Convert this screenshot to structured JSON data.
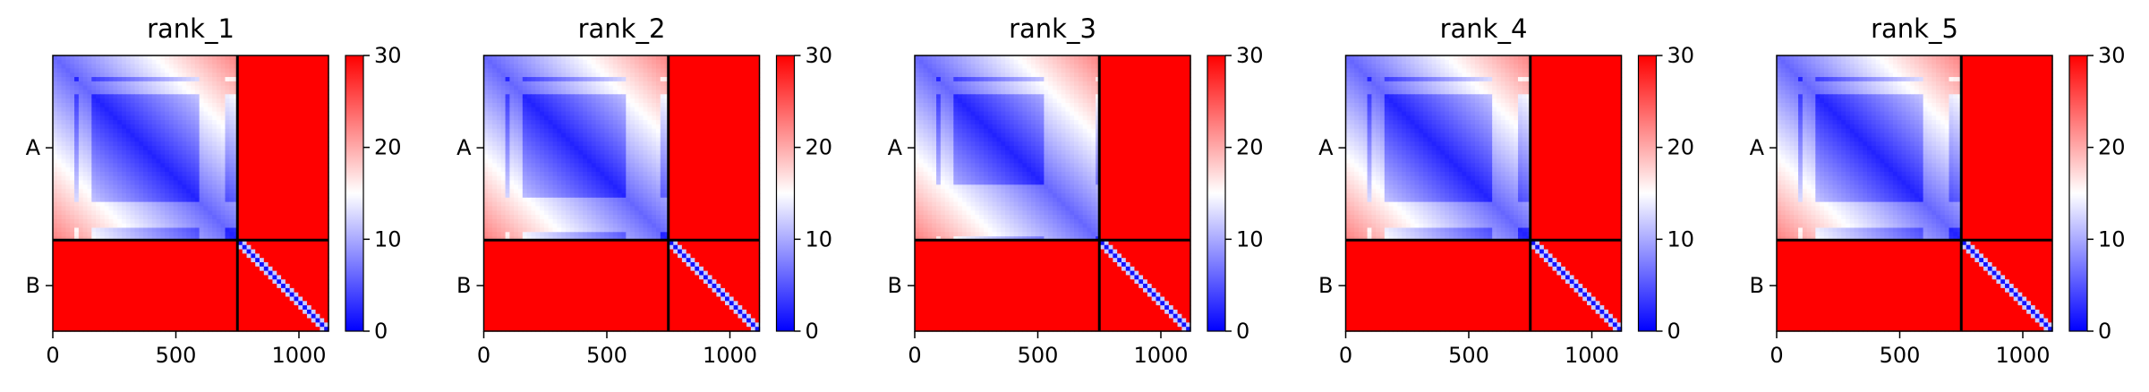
{
  "figure": {
    "background": "#ffffff"
  },
  "chart_data": [
    {
      "type": "heatmap",
      "title": "rank_1",
      "n_residues": 1120,
      "chain_boundary": 750,
      "chains": [
        {
          "label": "A",
          "start": 0,
          "end": 750
        },
        {
          "label": "B",
          "start": 750,
          "end": 1120
        }
      ],
      "x_ticks": [
        0,
        500,
        1000
      ],
      "xlim": [
        0,
        1120
      ],
      "colorbar": {
        "min": 0,
        "max": 30,
        "ticks": [
          0,
          10,
          20,
          30
        ],
        "colormap": "bwr",
        "low_color": "#0000ff",
        "mid_color": "#ffffff",
        "high_color": "#ff0000"
      },
      "intra_a_lowconf_rows": [
        [
          0,
          80
        ],
        [
          110,
          150
        ],
        [
          600,
          700
        ]
      ],
      "intra_b_offdiag": 30
    },
    {
      "type": "heatmap",
      "title": "rank_2",
      "n_residues": 1120,
      "chain_boundary": 750,
      "chains": [
        {
          "label": "A",
          "start": 0,
          "end": 750
        },
        {
          "label": "B",
          "start": 750,
          "end": 1120
        }
      ],
      "x_ticks": [
        0,
        500,
        1000
      ],
      "xlim": [
        0,
        1120
      ],
      "colorbar": {
        "min": 0,
        "max": 30,
        "ticks": [
          0,
          10,
          20,
          30
        ],
        "colormap": "bwr",
        "low_color": "#0000ff",
        "mid_color": "#ffffff",
        "high_color": "#ff0000"
      },
      "intra_a_lowconf_rows": [
        [
          0,
          80
        ],
        [
          110,
          150
        ],
        [
          580,
          720
        ]
      ],
      "intra_b_offdiag": 30
    },
    {
      "type": "heatmap",
      "title": "rank_3",
      "n_residues": 1120,
      "chain_boundary": 750,
      "chains": [
        {
          "label": "A",
          "start": 0,
          "end": 750
        },
        {
          "label": "B",
          "start": 750,
          "end": 1120
        }
      ],
      "x_ticks": [
        0,
        500,
        1000
      ],
      "xlim": [
        0,
        1120
      ],
      "colorbar": {
        "min": 0,
        "max": 30,
        "ticks": [
          0,
          10,
          20,
          30
        ],
        "colormap": "bwr",
        "low_color": "#0000ff",
        "mid_color": "#ffffff",
        "high_color": "#ff0000"
      },
      "intra_a_lowconf_rows": [
        [
          0,
          80
        ],
        [
          110,
          160
        ],
        [
          520,
          740
        ]
      ],
      "intra_b_offdiag": 30
    },
    {
      "type": "heatmap",
      "title": "rank_4",
      "n_residues": 1120,
      "chain_boundary": 750,
      "chains": [
        {
          "label": "A",
          "start": 0,
          "end": 750
        },
        {
          "label": "B",
          "start": 750,
          "end": 1120
        }
      ],
      "x_ticks": [
        0,
        500,
        1000
      ],
      "xlim": [
        0,
        1120
      ],
      "colorbar": {
        "min": 0,
        "max": 30,
        "ticks": [
          0,
          10,
          20,
          30
        ],
        "colormap": "bwr",
        "low_color": "#0000ff",
        "mid_color": "#ffffff",
        "high_color": "#ff0000"
      },
      "intra_a_lowconf_rows": [
        [
          0,
          80
        ],
        [
          110,
          150
        ],
        [
          600,
          700
        ]
      ],
      "intra_b_offdiag": 30
    },
    {
      "type": "heatmap",
      "title": "rank_5",
      "n_residues": 1120,
      "chain_boundary": 750,
      "chains": [
        {
          "label": "A",
          "start": 0,
          "end": 750
        },
        {
          "label": "B",
          "start": 750,
          "end": 1120
        }
      ],
      "x_ticks": [
        0,
        500,
        1000
      ],
      "xlim": [
        0,
        1120
      ],
      "colorbar": {
        "min": 0,
        "max": 30,
        "ticks": [
          0,
          10,
          20,
          30
        ],
        "colormap": "bwr",
        "low_color": "#0000ff",
        "mid_color": "#ffffff",
        "high_color": "#ff0000"
      },
      "intra_a_lowconf_rows": [
        [
          0,
          80
        ],
        [
          110,
          150
        ],
        [
          600,
          700
        ]
      ],
      "intra_b_offdiag": 30
    }
  ]
}
